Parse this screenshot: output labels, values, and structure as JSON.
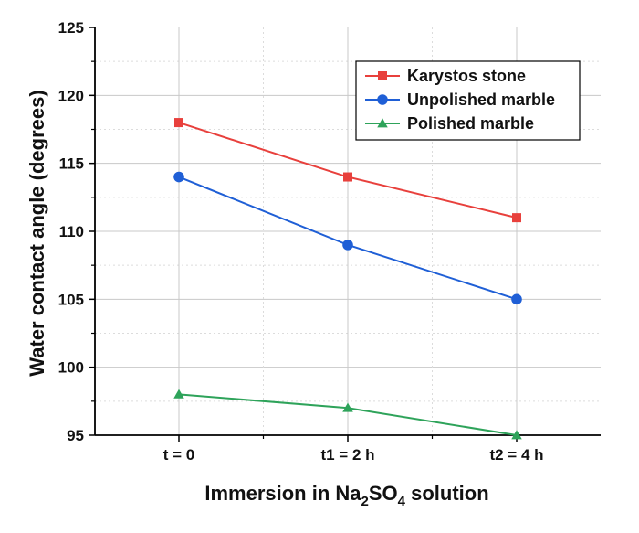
{
  "chart_data": {
    "type": "line",
    "title": "",
    "categories": [
      "t = 0",
      "t1 = 2 h",
      "t2 = 4 h"
    ],
    "xlabel_parts": [
      "Immersion in Na",
      "2",
      "SO",
      "4",
      " solution"
    ],
    "ylabel": "Water contact angle (degrees)",
    "ylim": [
      95,
      125
    ],
    "yticks": [
      95,
      100,
      105,
      110,
      115,
      120,
      125
    ],
    "grid": true,
    "legend_position": "top-right",
    "series": [
      {
        "name": "Karystos stone",
        "values": [
          118,
          114,
          111
        ],
        "color": "#e8403c",
        "marker": "square"
      },
      {
        "name": "Unpolished marble",
        "values": [
          114,
          109,
          105
        ],
        "color": "#1f5fd6",
        "marker": "circle"
      },
      {
        "name": "Polished marble",
        "values": [
          98,
          97,
          95
        ],
        "color": "#2ea35a",
        "marker": "triangle"
      }
    ]
  }
}
